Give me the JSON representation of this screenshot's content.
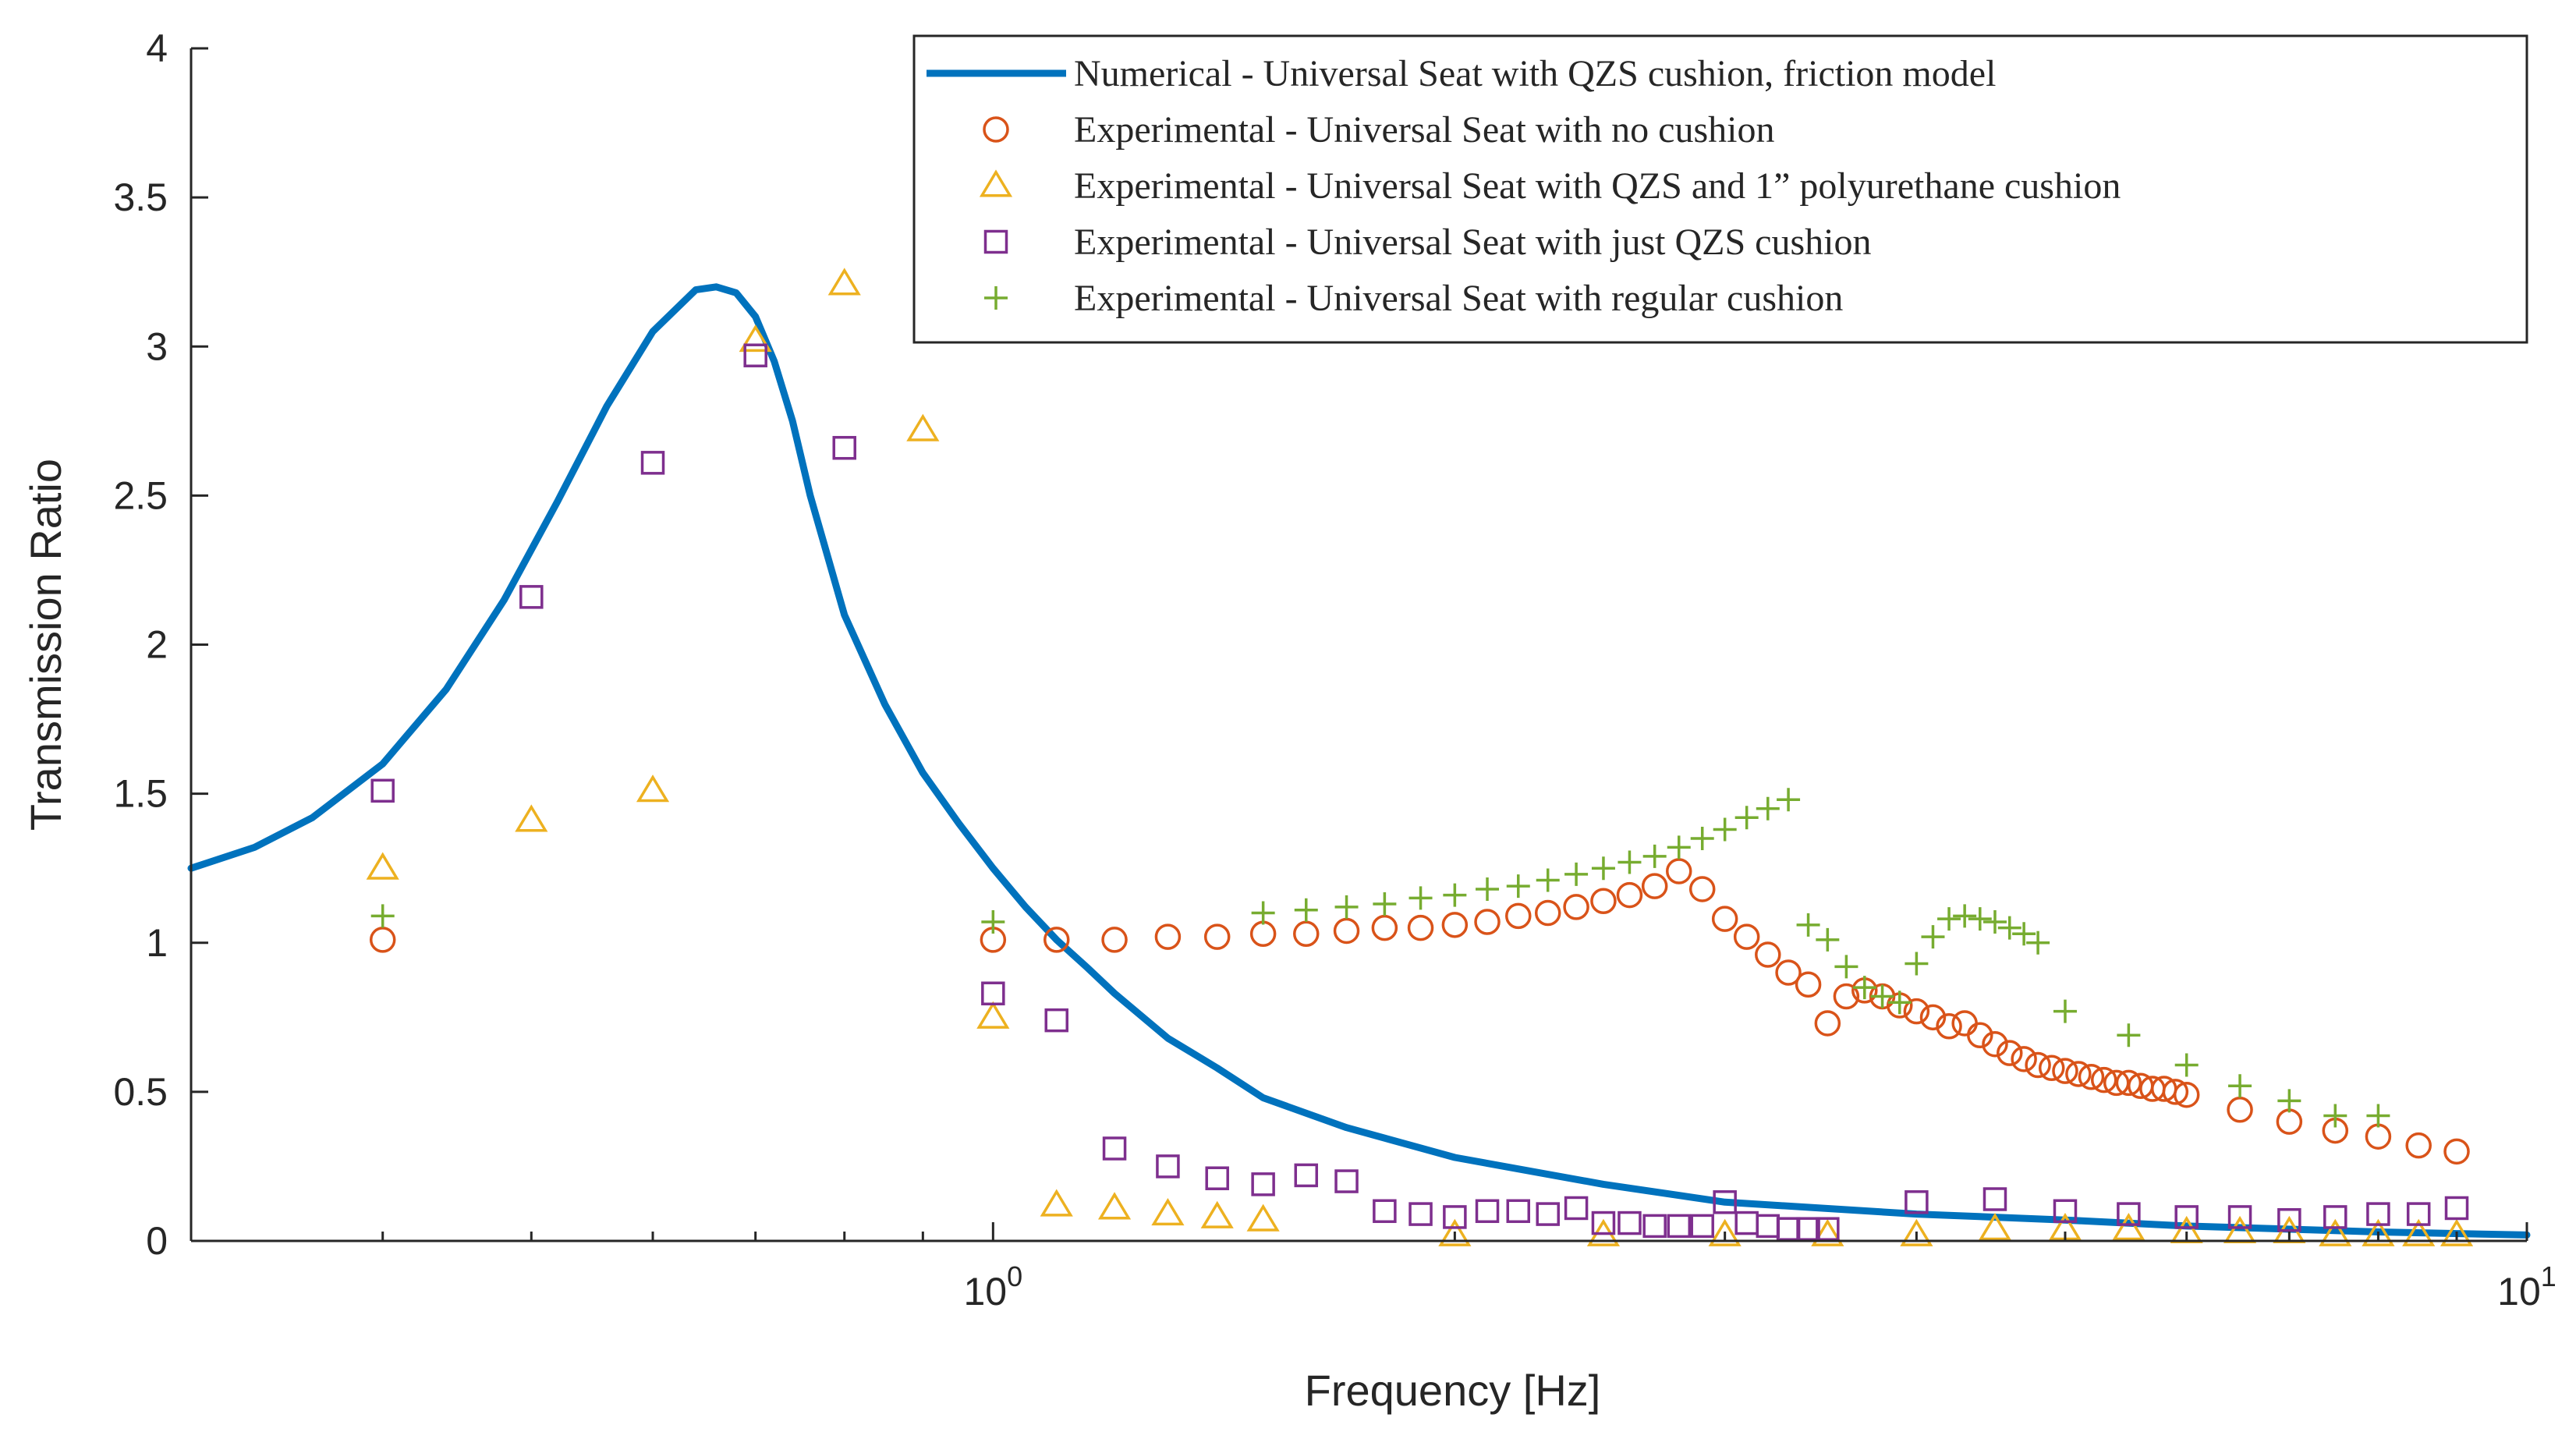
{
  "chart_data": {
    "type": "scatter",
    "title": "",
    "xlabel": "Frequency [Hz]",
    "ylabel": "Transmission Ratio",
    "xscale": "log",
    "xlim": [
      0.3,
      10
    ],
    "ylim": [
      0,
      4
    ],
    "yticks": [
      "0",
      "0.5",
      "1",
      "1.5",
      "2",
      "2.5",
      "3",
      "3.5",
      "4"
    ],
    "xticks": [
      {
        "base": "10",
        "exp": "0",
        "value": 1
      },
      {
        "base": "10",
        "exp": "1",
        "value": 10
      }
    ],
    "grid": false,
    "legend_position": "top-right",
    "series": [
      {
        "name": "Numerical - Universal Seat with QZS cushion, friction model",
        "marker": "line",
        "color": "#0072BD",
        "x": [
          0.3,
          0.33,
          0.36,
          0.4,
          0.44,
          0.48,
          0.52,
          0.56,
          0.6,
          0.64,
          0.66,
          0.68,
          0.7,
          0.72,
          0.74,
          0.76,
          0.8,
          0.85,
          0.9,
          0.95,
          1.0,
          1.05,
          1.1,
          1.15,
          1.2,
          1.3,
          1.4,
          1.5,
          1.7,
          2.0,
          2.5,
          3.0,
          4.0,
          5.0,
          6.0,
          8.0,
          10.0
        ],
        "y": [
          1.25,
          1.32,
          1.42,
          1.6,
          1.85,
          2.15,
          2.48,
          2.8,
          3.05,
          3.19,
          3.2,
          3.18,
          3.1,
          2.95,
          2.75,
          2.5,
          2.1,
          1.8,
          1.57,
          1.4,
          1.25,
          1.12,
          1.01,
          0.92,
          0.83,
          0.68,
          0.58,
          0.48,
          0.38,
          0.28,
          0.19,
          0.13,
          0.09,
          0.07,
          0.05,
          0.03,
          0.02
        ]
      },
      {
        "name": "Experimental - Universal Seat with no cushion",
        "marker": "circle",
        "color": "#D95319",
        "x": [
          0.4,
          1.0,
          1.1,
          1.2,
          1.3,
          1.4,
          1.5,
          1.6,
          1.7,
          1.8,
          1.9,
          2.0,
          2.1,
          2.2,
          2.3,
          2.4,
          2.5,
          2.6,
          2.7,
          2.8,
          2.9,
          3.0,
          3.1,
          3.2,
          3.3,
          3.4,
          3.5,
          3.6,
          3.7,
          3.8,
          3.9,
          4.0,
          4.1,
          4.2,
          4.3,
          4.4,
          4.5,
          4.6,
          4.7,
          4.8,
          4.9,
          5.0,
          5.1,
          5.2,
          5.3,
          5.4,
          5.5,
          5.6,
          5.7,
          5.8,
          5.9,
          6.0,
          6.5,
          7.0,
          7.5,
          8.0,
          8.5,
          9.0
        ],
        "y": [
          1.01,
          1.01,
          1.01,
          1.01,
          1.02,
          1.02,
          1.03,
          1.03,
          1.04,
          1.05,
          1.05,
          1.06,
          1.07,
          1.09,
          1.1,
          1.12,
          1.14,
          1.16,
          1.19,
          1.24,
          1.18,
          1.08,
          1.02,
          0.96,
          0.9,
          0.86,
          0.73,
          0.82,
          0.84,
          0.82,
          0.79,
          0.77,
          0.75,
          0.72,
          0.73,
          0.69,
          0.66,
          0.63,
          0.61,
          0.59,
          0.58,
          0.57,
          0.56,
          0.55,
          0.54,
          0.53,
          0.53,
          0.52,
          0.51,
          0.51,
          0.5,
          0.49,
          0.44,
          0.4,
          0.37,
          0.35,
          0.32,
          0.3
        ]
      },
      {
        "name": "Experimental - Universal Seat with QZS and 1” polyurethane cushion",
        "marker": "triangle",
        "color": "#EDB120",
        "x": [
          0.4,
          0.5,
          0.6,
          0.7,
          0.8,
          0.9,
          1.0,
          1.1,
          1.2,
          1.3,
          1.4,
          1.5,
          2.0,
          2.5,
          3.0,
          3.5,
          4.0,
          4.5,
          5.0,
          5.5,
          6.0,
          6.5,
          7.0,
          7.5,
          8.0,
          8.5,
          9.0
        ],
        "y": [
          1.25,
          1.41,
          1.51,
          3.02,
          3.21,
          2.72,
          0.75,
          0.12,
          0.11,
          0.09,
          0.08,
          0.07,
          0.02,
          0.02,
          0.02,
          0.02,
          0.02,
          0.04,
          0.04,
          0.04,
          0.03,
          0.03,
          0.03,
          0.02,
          0.02,
          0.02,
          0.02
        ]
      },
      {
        "name": "Experimental - Universal Seat with just QZS cushion",
        "marker": "square",
        "color": "#7E2F8E",
        "x": [
          0.4,
          0.5,
          0.6,
          0.7,
          0.8,
          1.0,
          1.1,
          1.2,
          1.3,
          1.4,
          1.5,
          1.6,
          1.7,
          1.8,
          1.9,
          2.0,
          2.1,
          2.2,
          2.3,
          2.4,
          2.5,
          2.6,
          2.7,
          2.8,
          2.9,
          3.0,
          3.1,
          3.2,
          3.3,
          3.4,
          3.5,
          4.0,
          4.5,
          5.0,
          5.5,
          6.0,
          6.5,
          7.0,
          7.5,
          8.0,
          8.5,
          9.0
        ],
        "y": [
          1.51,
          2.16,
          2.61,
          2.97,
          2.66,
          0.83,
          0.74,
          0.31,
          0.25,
          0.21,
          0.19,
          0.22,
          0.2,
          0.1,
          0.09,
          0.08,
          0.1,
          0.1,
          0.09,
          0.11,
          0.06,
          0.06,
          0.05,
          0.05,
          0.05,
          0.13,
          0.06,
          0.05,
          0.04,
          0.04,
          0.04,
          0.13,
          0.14,
          0.1,
          0.09,
          0.08,
          0.08,
          0.07,
          0.08,
          0.09,
          0.09,
          0.11
        ]
      },
      {
        "name": "Experimental - Universal Seat with regular cushion",
        "marker": "plus",
        "color": "#77AC30",
        "x": [
          0.4,
          1.0,
          1.5,
          1.6,
          1.7,
          1.8,
          1.9,
          2.0,
          2.1,
          2.2,
          2.3,
          2.4,
          2.5,
          2.6,
          2.7,
          2.8,
          2.9,
          3.0,
          3.1,
          3.2,
          3.3,
          3.4,
          3.5,
          3.6,
          3.7,
          3.8,
          3.9,
          4.0,
          4.1,
          4.2,
          4.3,
          4.4,
          4.5,
          4.6,
          4.7,
          4.8,
          5.0,
          5.5,
          6.0,
          6.5,
          7.0,
          7.5,
          8.0
        ],
        "y": [
          1.09,
          1.07,
          1.1,
          1.11,
          1.12,
          1.13,
          1.15,
          1.16,
          1.18,
          1.19,
          1.21,
          1.23,
          1.25,
          1.27,
          1.29,
          1.32,
          1.35,
          1.38,
          1.42,
          1.45,
          1.48,
          1.06,
          1.01,
          0.92,
          0.85,
          0.82,
          0.8,
          0.93,
          1.02,
          1.08,
          1.09,
          1.08,
          1.07,
          1.05,
          1.03,
          1.0,
          0.77,
          0.69,
          0.59,
          0.52,
          0.47,
          0.42,
          0.42
        ]
      }
    ]
  }
}
